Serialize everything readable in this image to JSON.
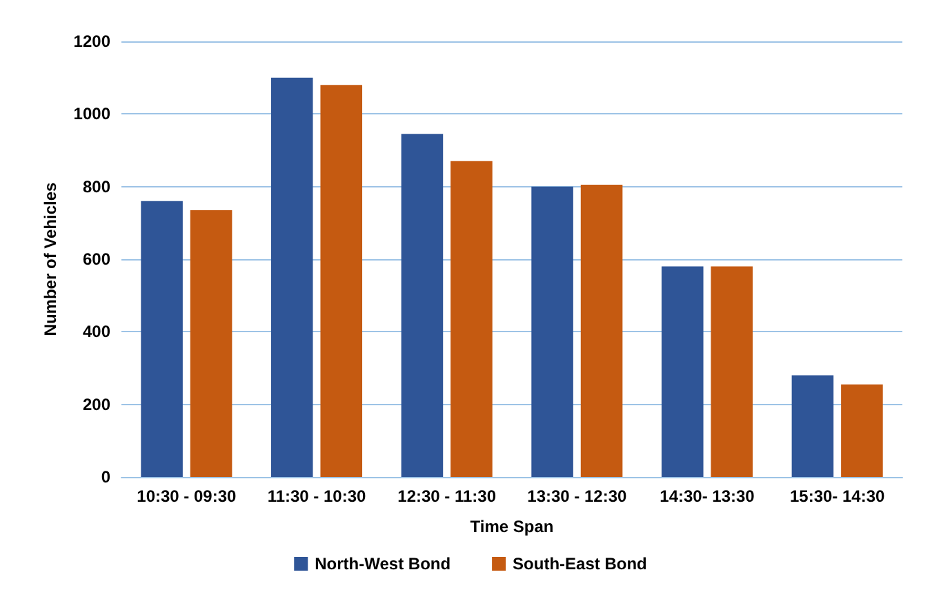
{
  "chart_data": {
    "type": "bar",
    "xlabel": "Time Span",
    "ylabel": "Number of Vehicles",
    "categories": [
      "10:30 - 09:30",
      "11:30 - 10:30",
      "12:30 - 11:30",
      "13:30 - 12:30",
      "14:30- 13:30",
      "15:30- 14:30"
    ],
    "series": [
      {
        "name": "North-West Bond",
        "color": "#2f5597",
        "values": [
          760,
          1100,
          945,
          800,
          580,
          280
        ]
      },
      {
        "name": "South-East Bond",
        "color": "#c55a11",
        "values": [
          735,
          1080,
          870,
          805,
          580,
          255
        ]
      }
    ],
    "ylim": [
      0,
      1200
    ],
    "yticks": [
      0,
      200,
      400,
      600,
      800,
      1000,
      1200
    ],
    "grid": "y",
    "legend": "bottom"
  }
}
